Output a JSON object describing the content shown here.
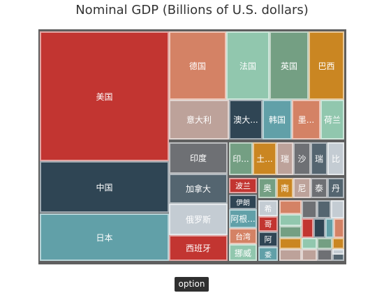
{
  "option_label": "option",
  "chart_data": {
    "type": "treemap",
    "title": "Nominal GDP (Billions of U.S. dollars)",
    "palette": [
      "#c23531",
      "#2f4554",
      "#61a0a8",
      "#d48265",
      "#91c7ae",
      "#749f83",
      "#ca8622",
      "#bda29a",
      "#6e7074",
      "#546570",
      "#c4ccd3"
    ],
    "items": [
      {
        "label": "美国",
        "value": 18036.6,
        "color": "#c23531"
      },
      {
        "label": "中国",
        "value": 11064.7,
        "color": "#2f4554"
      },
      {
        "label": "日本",
        "value": 4383.1,
        "color": "#61a0a8"
      },
      {
        "label": "德国",
        "value": 3363.6,
        "color": "#d48265"
      },
      {
        "label": "法国",
        "value": 2418.8,
        "color": "#91c7ae"
      },
      {
        "label": "英国",
        "value": 2858.0,
        "color": "#749f83"
      },
      {
        "label": "巴西",
        "value": 1802.2,
        "color": "#ca8622"
      },
      {
        "label": "意大利",
        "value": 1821.5,
        "color": "#bda29a"
      },
      {
        "label": "澳大...",
        "value": 1230.9,
        "color": "#2f4554"
      },
      {
        "label": "韩国",
        "value": 1382.8,
        "color": "#61a0a8"
      },
      {
        "label": "墨...",
        "value": 1151.0,
        "color": "#d48265"
      },
      {
        "label": "荷兰",
        "value": 757.4,
        "color": "#91c7ae"
      },
      {
        "label": "印度",
        "value": 2088.0,
        "color": "#6e7074"
      },
      {
        "label": "印...",
        "value": 861.3,
        "color": "#749f83"
      },
      {
        "label": "土...",
        "value": 859.4,
        "color": "#ca8622"
      },
      {
        "label": "瑞",
        "value": 679.0,
        "color": "#bda29a"
      },
      {
        "label": "沙",
        "value": 654.3,
        "color": "#6e7074"
      },
      {
        "label": "瑞",
        "value": 495.6,
        "color": "#546570"
      },
      {
        "label": "比",
        "value": 455.1,
        "color": "#c4ccd3"
      },
      {
        "label": "加拿大",
        "value": 1552.4,
        "color": "#546570"
      },
      {
        "label": "俄罗斯",
        "value": 1365.9,
        "color": "#c4ccd3"
      },
      {
        "label": "西班牙",
        "value": 1199.1,
        "color": "#c23531"
      },
      {
        "label": "波兰",
        "value": 474.8,
        "color": "#c23531"
      },
      {
        "label": "伊朗",
        "value": 393.4,
        "color": "#2f4554"
      },
      {
        "label": "阿根...",
        "value": 583.2,
        "color": "#61a0a8"
      },
      {
        "label": "台湾",
        "value": 525.2,
        "color": "#d48265"
      },
      {
        "label": "挪威",
        "value": 386.6,
        "color": "#91c7ae"
      },
      {
        "label": "奥",
        "value": 377.0,
        "color": "#749f83"
      },
      {
        "label": "南",
        "value": 317.6,
        "color": "#ca8622"
      },
      {
        "label": "尼",
        "value": 481.1,
        "color": "#bda29a"
      },
      {
        "label": "泰",
        "value": 395.2,
        "color": "#6e7074"
      },
      {
        "label": "丹",
        "value": 295.1,
        "color": "#546570"
      },
      {
        "label": "希",
        "value": 195.3,
        "color": "#c4ccd3"
      },
      {
        "label": "哥",
        "value": 292.1,
        "color": "#c23531"
      },
      {
        "label": "阿",
        "value": 370.3,
        "color": "#2f4554"
      },
      {
        "label": "委",
        "value": 260.1,
        "color": "#61a0a8"
      },
      {
        "label": "",
        "value": 240.0,
        "color": "#d48265"
      },
      {
        "label": "",
        "value": 228.0,
        "color": "#91c7ae"
      },
      {
        "label": "",
        "value": 220.0,
        "color": "#749f83"
      },
      {
        "label": "",
        "value": 210.0,
        "color": "#ca8622"
      },
      {
        "label": "",
        "value": 200.0,
        "color": "#bda29a"
      },
      {
        "label": "",
        "value": 150.0,
        "color": "#6e7074"
      },
      {
        "label": "",
        "value": 140.0,
        "color": "#546570"
      },
      {
        "label": "",
        "value": 130.0,
        "color": "#c4ccd3"
      },
      {
        "label": "",
        "value": 120.0,
        "color": "#c23531"
      },
      {
        "label": "",
        "value": 110.0,
        "color": "#2f4554"
      },
      {
        "label": "",
        "value": 100.0,
        "color": "#61a0a8"
      },
      {
        "label": "",
        "value": 95.0,
        "color": "#d48265"
      },
      {
        "label": "",
        "value": 90.0,
        "color": "#91c7ae"
      },
      {
        "label": "",
        "value": 85.0,
        "color": "#749f83"
      },
      {
        "label": "",
        "value": 80.0,
        "color": "#ca8622"
      },
      {
        "label": "",
        "value": 75.0,
        "color": "#bda29a"
      },
      {
        "label": "",
        "value": 70.0,
        "color": "#6e7074"
      },
      {
        "label": "",
        "value": 65.0,
        "color": "#546570"
      },
      {
        "label": "",
        "value": 60.0,
        "color": "#c4ccd3"
      }
    ]
  }
}
